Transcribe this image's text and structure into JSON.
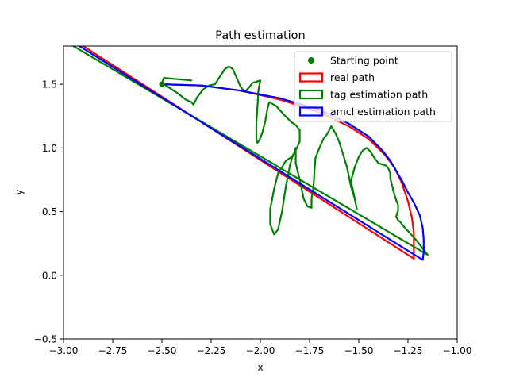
{
  "chart_data": {
    "type": "line",
    "title": "Path estimation",
    "xlabel": "x",
    "ylabel": "y",
    "xlim": [
      -3.0,
      -1.0
    ],
    "ylim": [
      -0.5,
      1.8
    ],
    "xticks": [
      -3.0,
      -2.75,
      -2.5,
      -2.25,
      -2.0,
      -1.75,
      -1.5,
      -1.25,
      -1.0
    ],
    "xtick_labels": [
      "−3.00",
      "−2.75",
      "−2.50",
      "−2.25",
      "−2.00",
      "−1.75",
      "−1.50",
      "−1.25",
      "−1.00"
    ],
    "yticks": [
      -0.5,
      0.0,
      0.5,
      1.0,
      1.5
    ],
    "ytick_labels": [
      "−0.5",
      "0.0",
      "0.5",
      "1.0",
      "1.5"
    ],
    "grid": false,
    "legend_position": "top-right",
    "legend": [
      {
        "label": "Starting point",
        "color": "#008000",
        "kind": "marker"
      },
      {
        "label": "real path",
        "color": "#ff0000",
        "kind": "patch"
      },
      {
        "label": "tag estimation path",
        "color": "#008000",
        "kind": "patch"
      },
      {
        "label": "amcl estimation path",
        "color": "#0000ff",
        "kind": "patch"
      }
    ],
    "series": [
      {
        "name": "real path",
        "color": "#ff0000",
        "x": [
          -2.5,
          -2.3,
          -2.1,
          -1.9,
          -1.7,
          -1.55,
          -1.45,
          -1.37,
          -1.32,
          -1.28,
          -1.25,
          -1.23,
          -1.22,
          -1.22,
          -2.9,
          -3.0
        ],
        "y": [
          1.5,
          1.49,
          1.45,
          1.38,
          1.28,
          1.17,
          1.07,
          0.95,
          0.85,
          0.72,
          0.58,
          0.45,
          0.33,
          0.13,
          1.8,
          1.85
        ]
      },
      {
        "name": "amcl estimation path",
        "color": "#0000ff",
        "x": [
          -2.5,
          -2.3,
          -2.1,
          -1.9,
          -1.7,
          -1.55,
          -1.45,
          -1.38,
          -1.34,
          -1.31,
          -1.28,
          -1.25,
          -1.22,
          -1.19,
          -1.175,
          -1.17,
          -1.17,
          -1.175,
          -2.92,
          -3.0
        ],
        "y": [
          1.5,
          1.49,
          1.45,
          1.39,
          1.3,
          1.19,
          1.09,
          0.98,
          0.9,
          0.82,
          0.74,
          0.65,
          0.57,
          0.47,
          0.37,
          0.28,
          0.18,
          0.12,
          1.8,
          1.84
        ]
      },
      {
        "name": "tag estimation path",
        "color": "#008000",
        "x": [
          -2.35,
          -2.49,
          -2.5,
          -2.46,
          -2.42,
          -2.38,
          -2.35,
          -2.34,
          -2.32,
          -2.29,
          -2.26,
          -2.23,
          -2.21,
          -2.18,
          -2.16,
          -2.14,
          -2.12,
          -2.1,
          -2.08,
          -2.06,
          -2.04,
          -2.02,
          -2.0,
          -2.01,
          -2.015,
          -2.02,
          -2.02,
          -2.015,
          -2.005,
          -1.99,
          -1.975,
          -1.965,
          -1.955,
          -1.92,
          -1.88,
          -1.84,
          -1.82,
          -1.8,
          -1.8,
          -1.82,
          -1.84,
          -1.87,
          -1.89,
          -1.91,
          -1.93,
          -1.95,
          -1.95,
          -1.93,
          -1.91,
          -1.89,
          -1.87,
          -1.85,
          -1.84,
          -1.83,
          -1.82,
          -1.82,
          -1.8,
          -1.78,
          -1.76,
          -1.74,
          -1.74,
          -1.73,
          -1.725,
          -1.72,
          -1.7,
          -1.68,
          -1.66,
          -1.64,
          -1.62,
          -1.6,
          -1.58,
          -1.56,
          -1.54,
          -1.52,
          -1.51,
          -1.52,
          -1.54,
          -1.52,
          -1.5,
          -1.48,
          -1.46,
          -1.44,
          -1.42,
          -1.4,
          -1.38,
          -1.36,
          -1.35,
          -1.34,
          -1.34,
          -1.33,
          -1.32,
          -1.31,
          -1.3,
          -1.3,
          -1.31,
          -1.3,
          -1.29,
          -1.27,
          -1.24,
          -1.21,
          -1.19,
          -1.17,
          -1.15,
          -2.95
        ],
        "y": [
          1.53,
          1.55,
          1.51,
          1.47,
          1.43,
          1.38,
          1.36,
          1.34,
          1.4,
          1.46,
          1.49,
          1.5,
          1.55,
          1.62,
          1.64,
          1.62,
          1.55,
          1.48,
          1.44,
          1.47,
          1.51,
          1.52,
          1.53,
          1.45,
          1.32,
          1.2,
          1.07,
          1.04,
          1.06,
          1.12,
          1.21,
          1.3,
          1.36,
          1.33,
          1.26,
          1.2,
          1.18,
          1.14,
          1.05,
          0.98,
          0.93,
          0.9,
          0.85,
          0.8,
          0.68,
          0.52,
          0.4,
          0.32,
          0.36,
          0.5,
          0.7,
          0.86,
          0.92,
          0.95,
          1.0,
          0.88,
          0.75,
          0.6,
          0.54,
          0.53,
          0.6,
          0.7,
          0.82,
          0.92,
          1.0,
          1.07,
          1.11,
          1.17,
          1.12,
          1.05,
          0.95,
          0.85,
          0.7,
          0.6,
          0.52,
          0.6,
          0.74,
          0.85,
          0.93,
          0.98,
          1.0,
          0.97,
          0.92,
          0.88,
          0.87,
          0.86,
          0.84,
          0.8,
          0.76,
          0.7,
          0.64,
          0.59,
          0.55,
          0.51,
          0.46,
          0.43,
          0.42,
          0.38,
          0.33,
          0.28,
          0.24,
          0.2,
          0.16,
          1.8
        ]
      }
    ],
    "starting_point": {
      "x": -2.5,
      "y": 1.5,
      "color": "#008000"
    }
  }
}
